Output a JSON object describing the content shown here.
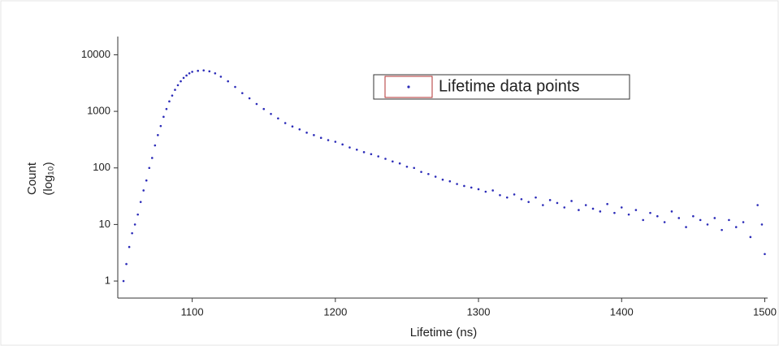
{
  "chart_data": {
    "type": "scatter",
    "x_label": "Lifetime (ns)",
    "y_label": [
      "Count",
      "(log₁₀)"
    ],
    "x": [
      1052,
      1054,
      1056,
      1058,
      1060,
      1062,
      1064,
      1066,
      1068,
      1070,
      1072,
      1074,
      1076,
      1078,
      1080,
      1082,
      1084,
      1086,
      1088,
      1090,
      1092,
      1094,
      1096,
      1098,
      1100,
      1104,
      1108,
      1112,
      1116,
      1120,
      1125,
      1130,
      1135,
      1140,
      1145,
      1150,
      1155,
      1160,
      1165,
      1170,
      1175,
      1180,
      1185,
      1190,
      1195,
      1200,
      1205,
      1210,
      1215,
      1220,
      1225,
      1230,
      1235,
      1240,
      1245,
      1250,
      1255,
      1260,
      1265,
      1270,
      1275,
      1280,
      1285,
      1290,
      1295,
      1300,
      1305,
      1310,
      1315,
      1320,
      1325,
      1330,
      1335,
      1340,
      1345,
      1350,
      1355,
      1360,
      1365,
      1370,
      1375,
      1380,
      1385,
      1390,
      1395,
      1400,
      1405,
      1410,
      1415,
      1420,
      1425,
      1430,
      1435,
      1440,
      1445,
      1450,
      1455,
      1460,
      1465,
      1470,
      1475,
      1480,
      1485,
      1490,
      1495,
      1498,
      1500
    ],
    "series": [
      {
        "name": "Lifetime data points",
        "color": "#2b2bb8",
        "values": [
          1,
          2,
          4,
          7,
          10,
          15,
          25,
          40,
          60,
          100,
          150,
          250,
          380,
          550,
          800,
          1100,
          1500,
          1900,
          2400,
          2900,
          3400,
          3900,
          4300,
          4700,
          5000,
          5200,
          5300,
          5100,
          4700,
          4100,
          3400,
          2700,
          2100,
          1700,
          1350,
          1100,
          900,
          750,
          620,
          540,
          480,
          420,
          380,
          340,
          310,
          290,
          260,
          230,
          210,
          190,
          175,
          160,
          145,
          130,
          120,
          105,
          100,
          85,
          78,
          70,
          62,
          58,
          52,
          48,
          45,
          42,
          38,
          40,
          33,
          30,
          34,
          28,
          25,
          30,
          22,
          27,
          24,
          20,
          26,
          18,
          22,
          19,
          17,
          23,
          16,
          20,
          15,
          18,
          12,
          16,
          14,
          11,
          17,
          13,
          9,
          14,
          12,
          10,
          13,
          8,
          12,
          9,
          11,
          6,
          22,
          10,
          3
        ]
      }
    ],
    "log_y": true,
    "xlim": [
      1048,
      1502
    ],
    "xticks": [
      1100,
      1200,
      1300,
      1400,
      1500
    ],
    "ylim": [
      0.5,
      21000
    ],
    "yticks": [
      1,
      10,
      100,
      1000,
      10000
    ]
  }
}
